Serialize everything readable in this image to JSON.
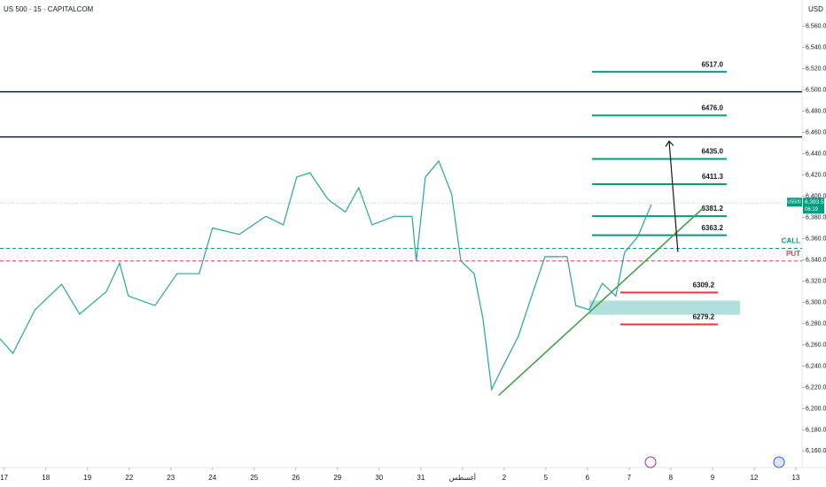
{
  "chart_data": {
    "type": "line",
    "title": "US 500 · 15 · CAPITALCOM",
    "y_unit": "USD",
    "xlim": [
      -0.1,
      19.15
    ],
    "ylim": [
      6152,
      6568
    ],
    "xticks": [
      {
        "value": 0,
        "label": "17"
      },
      {
        "value": 1,
        "label": "18"
      },
      {
        "value": 2,
        "label": "19"
      },
      {
        "value": 3,
        "label": "22"
      },
      {
        "value": 4,
        "label": "23"
      },
      {
        "value": 5,
        "label": "24"
      },
      {
        "value": 6,
        "label": "25"
      },
      {
        "value": 7,
        "label": "26"
      },
      {
        "value": 8,
        "label": "29"
      },
      {
        "value": 9,
        "label": "30"
      },
      {
        "value": 10,
        "label": "31"
      },
      {
        "value": 11,
        "label": "أغسطس"
      },
      {
        "value": 12,
        "label": "2"
      },
      {
        "value": 13,
        "label": "5"
      },
      {
        "value": 14,
        "label": "6"
      },
      {
        "value": 15,
        "label": "7"
      },
      {
        "value": 16,
        "label": "8"
      },
      {
        "value": 17,
        "label": "9"
      },
      {
        "value": 18,
        "label": "12"
      },
      {
        "value": 19,
        "label": "13"
      }
    ],
    "yticks": [
      {
        "value": 6160,
        "label": "6,160.0"
      },
      {
        "value": 6180,
        "label": "6,180.0"
      },
      {
        "value": 6200,
        "label": "6,200.0"
      },
      {
        "value": 6220,
        "label": "6,220.0"
      },
      {
        "value": 6240,
        "label": "6,240.0"
      },
      {
        "value": 6260,
        "label": "6,260.0"
      },
      {
        "value": 6280,
        "label": "6,280.0"
      },
      {
        "value": 6300,
        "label": "6,300.0"
      },
      {
        "value": 6320,
        "label": "6,320.0"
      },
      {
        "value": 6340,
        "label": "6,340.0"
      },
      {
        "value": 6360,
        "label": "6,360.0"
      },
      {
        "value": 6380,
        "label": "6,380.0"
      },
      {
        "value": 6400,
        "label": "6,400.0"
      },
      {
        "value": 6420,
        "label": "6,420.0"
      },
      {
        "value": 6440,
        "label": "6,440.0"
      },
      {
        "value": 6460,
        "label": "6,460.0"
      },
      {
        "value": 6480,
        "label": "6,480.0"
      },
      {
        "value": 6500,
        "label": "6,500.0"
      },
      {
        "value": 6520,
        "label": "6,520.0"
      },
      {
        "value": 6540,
        "label": "6,540.0"
      },
      {
        "value": 6560,
        "label": "6,560.0"
      }
    ],
    "series": [
      {
        "name": "US500",
        "color": "#26a69a",
        "x": [
          -0.11,
          0.21,
          0.74,
          1.38,
          1.81,
          2.45,
          2.77,
          2.98,
          3.62,
          4.15,
          4.68,
          5.0,
          5.64,
          6.28,
          6.7,
          7.02,
          7.34,
          7.77,
          8.19,
          8.51,
          8.83,
          9.36,
          9.79,
          9.89,
          10.11,
          10.43,
          10.74,
          10.96,
          11.28,
          11.49,
          11.7,
          11.91,
          12.34,
          12.66,
          12.98,
          13.51,
          13.72,
          14.04,
          14.36,
          14.68,
          14.89,
          15.21,
          15.53
        ],
        "values": [
          6266,
          6252,
          6293,
          6317,
          6289,
          6310,
          6337,
          6306,
          6297,
          6327,
          6327,
          6370,
          6364,
          6381,
          6373,
          6418,
          6422,
          6397,
          6385,
          6408,
          6373,
          6381,
          6381,
          6339,
          6418,
          6433,
          6402,
          6339,
          6327,
          6285,
          6218,
          6235,
          6268,
          6306,
          6343,
          6343,
          6297,
          6293,
          6318,
          6306,
          6347,
          6362,
          6392
        ]
      }
    ],
    "last_price": {
      "symbol": "US500",
      "value": 6393.5,
      "label": "6,393.5",
      "timer": "06:19"
    },
    "hlines": [
      {
        "value": 6498.3,
        "color": "#0b2430"
      },
      {
        "value": 6455.8,
        "color": "#0b2430"
      }
    ],
    "signals": [
      {
        "name": "CALL",
        "value": 6350.8,
        "color": "#089981"
      },
      {
        "name": "PUT",
        "value": 6339,
        "color": "#f23645"
      }
    ],
    "levels": [
      {
        "value": 6517,
        "label": "6517.0",
        "x": [
          14.11,
          17.34
        ],
        "color": "#089981"
      },
      {
        "value": 6476,
        "label": "6476.0",
        "x": [
          14.11,
          17.34
        ],
        "color": "#089981"
      },
      {
        "value": 6435,
        "label": "6435.0",
        "x": [
          14.11,
          17.34
        ],
        "color": "#089981"
      },
      {
        "value": 6411.3,
        "label": "6411.3",
        "x": [
          14.11,
          17.34
        ],
        "color": "#089981"
      },
      {
        "value": 6381.2,
        "label": "6381.2",
        "x": [
          14.11,
          17.34
        ],
        "color": "#089981"
      },
      {
        "value": 6363.2,
        "label": "6363.2",
        "x": [
          14.11,
          17.34
        ],
        "color": "#089981"
      },
      {
        "value": 6309.2,
        "label": "6309.2",
        "x": [
          14.79,
          17.13
        ],
        "color": "#f23645"
      },
      {
        "value": 6279.2,
        "label": "6279.2",
        "x": [
          14.79,
          17.13
        ],
        "color": "#f23645"
      }
    ],
    "trend": {
      "x": [
        11.87,
        16.81
      ],
      "values": [
        6212.5,
        6390
      ],
      "color": "#43a047"
    },
    "arrow": {
      "x": [
        16.17,
        15.96
      ],
      "values": [
        6347.5,
        6451.7
      ],
      "color": "#131722"
    },
    "zone": {
      "x": [
        14.04,
        17.66
      ],
      "values": [
        6288.3,
        6301.7
      ],
      "color": "#b2dfdb"
    }
  }
}
